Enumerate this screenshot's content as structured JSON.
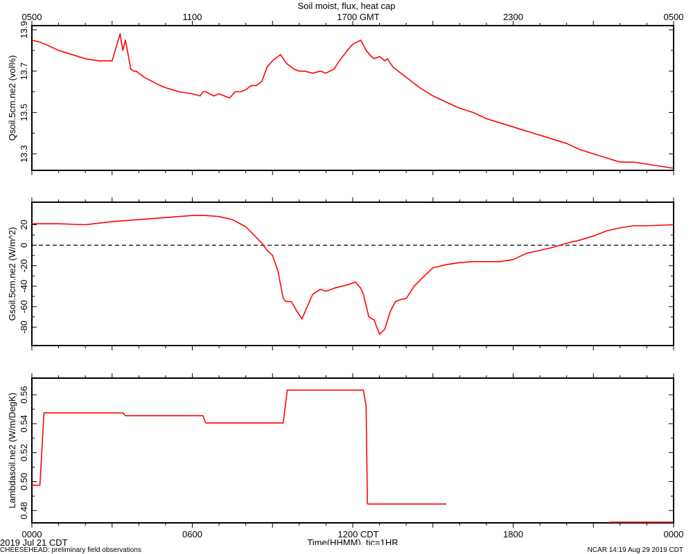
{
  "title": "Soil moist, flux, heat cap",
  "top_axis_ticks": [
    "0500",
    "1100",
    "1700 GMT",
    "2300",
    "0500"
  ],
  "bottom_axis_ticks": [
    "0000",
    "0600",
    "1200 CDT",
    "1800",
    "0000"
  ],
  "xlabel": "Time(HHMM), tic=1HR",
  "date_label": "2019 Jul 21 CDT",
  "footer_left": "CHEESEHEAD: preliminary field observations",
  "footer_right": "NCAR 14:19 Aug 29 2019 CDT",
  "colors": {
    "series": "#ff0000",
    "axes": "#000000",
    "zero_line": "#000000"
  },
  "chart_data": [
    {
      "type": "line",
      "ylabel": "Qsoil.5cm.ne2 (vol%)",
      "ylim": [
        13.22,
        13.92
      ],
      "yticks": [
        13.3,
        13.5,
        13.7,
        13.9
      ],
      "ytick_labels": [
        "13.3",
        "13.5",
        "13.7",
        "13.9"
      ],
      "series": [
        {
          "x": [
            0,
            0.3,
            0.5,
            1,
            1.5,
            2,
            2.5,
            3,
            3.3,
            3.4,
            3.5,
            3.7,
            3.8,
            3.9,
            4,
            4.2,
            4.5,
            4.8,
            5,
            5.5,
            6,
            6.3,
            6.4,
            6.5,
            6.8,
            7,
            7.2,
            7.4,
            7.6,
            7.8,
            8,
            8.2,
            8.4,
            8.6,
            8.8,
            9,
            9.3,
            9.5,
            9.8,
            10,
            10.2,
            10.5,
            10.8,
            11,
            11.3,
            11.5,
            11.8,
            12,
            12.3,
            12.5,
            12.7,
            12.8,
            13,
            13.2,
            13.3,
            13.4,
            13.5,
            13.7,
            14,
            14.5,
            15,
            15.5,
            16,
            16.5,
            17,
            17.5,
            18,
            18.5,
            19,
            19.5,
            20,
            20.5,
            21,
            21.5,
            22,
            22.5,
            23,
            23.5,
            24
          ],
          "y": [
            13.85,
            13.84,
            13.83,
            13.8,
            13.78,
            13.76,
            13.75,
            13.75,
            13.88,
            13.8,
            13.85,
            13.71,
            13.7,
            13.7,
            13.69,
            13.67,
            13.65,
            13.63,
            13.62,
            13.6,
            13.59,
            13.58,
            13.6,
            13.6,
            13.58,
            13.59,
            13.58,
            13.57,
            13.6,
            13.6,
            13.61,
            13.63,
            13.63,
            13.65,
            13.72,
            13.75,
            13.78,
            13.74,
            13.71,
            13.7,
            13.7,
            13.69,
            13.7,
            13.69,
            13.71,
            13.75,
            13.8,
            13.83,
            13.85,
            13.8,
            13.77,
            13.76,
            13.77,
            13.75,
            13.76,
            13.74,
            13.72,
            13.7,
            13.67,
            13.62,
            13.58,
            13.55,
            13.52,
            13.5,
            13.47,
            13.45,
            13.43,
            13.41,
            13.39,
            13.37,
            13.35,
            13.32,
            13.3,
            13.28,
            13.26,
            13.26,
            13.25,
            13.24,
            13.23
          ]
        }
      ]
    },
    {
      "type": "line",
      "ylabel": "Gsoil.5cm.ne2 (W/m^2)",
      "ylim": [
        -98,
        42
      ],
      "yticks": [
        -80,
        -60,
        -40,
        -20,
        0,
        20
      ],
      "ytick_labels": [
        "-80",
        "-60",
        "-40",
        "-20",
        "0",
        "20"
      ],
      "zero_line": true,
      "series": [
        {
          "x": [
            0,
            1,
            2,
            3,
            4,
            5,
            6,
            6.5,
            7,
            7.5,
            8,
            8.3,
            8.6,
            8.8,
            9,
            9.2,
            9.4,
            9.5,
            9.7,
            9.9,
            10.1,
            10.3,
            10.5,
            10.8,
            11,
            11.3,
            11.6,
            11.9,
            12.1,
            12.3,
            12.4,
            12.6,
            12.8,
            12.9,
            13,
            13.2,
            13.4,
            13.6,
            13.8,
            14,
            14.3,
            14.6,
            15,
            15.5,
            16,
            16.5,
            17,
            17.5,
            18,
            18.5,
            19,
            19.5,
            20,
            20.5,
            21,
            21.5,
            22,
            22.5,
            23,
            24
          ],
          "y": [
            21,
            21,
            20,
            23,
            25,
            27,
            29,
            29,
            28,
            25,
            18,
            10,
            2,
            -5,
            -10,
            -25,
            -52,
            -55,
            -55,
            -64,
            -72,
            -60,
            -48,
            -43,
            -45,
            -42,
            -40,
            -38,
            -36,
            -42,
            -48,
            -70,
            -73,
            -80,
            -87,
            -82,
            -65,
            -55,
            -53,
            -52,
            -40,
            -32,
            -22,
            -19,
            -17,
            -16,
            -16,
            -16,
            -14,
            -8,
            -5,
            -2,
            2,
            5,
            9,
            14,
            17,
            19,
            19,
            20
          ]
        }
      ]
    },
    {
      "type": "line",
      "ylabel": "Lambdasoil.ne2 (W/m/DegK)",
      "ylim": [
        0.4715,
        0.5715
      ],
      "yticks": [
        0.48,
        0.5,
        0.52,
        0.54,
        0.56
      ],
      "ytick_labels": [
        "0.48",
        "0.50",
        "0.52",
        "0.54",
        "0.56"
      ],
      "series": [
        {
          "x": [
            0,
            0.3,
            0.45,
            3.4,
            3.5,
            6.4,
            6.5,
            9.4,
            9.55,
            12.4,
            12.5,
            12.55,
            15.5
          ],
          "y": [
            0.4975,
            0.4975,
            0.5475,
            0.5475,
            0.5455,
            0.5455,
            0.5405,
            0.5405,
            0.5632,
            0.5632,
            0.552,
            0.4845,
            0.4845
          ]
        },
        {
          "x": [
            21.6,
            24
          ],
          "y": [
            0.472,
            0.472
          ]
        }
      ]
    }
  ]
}
